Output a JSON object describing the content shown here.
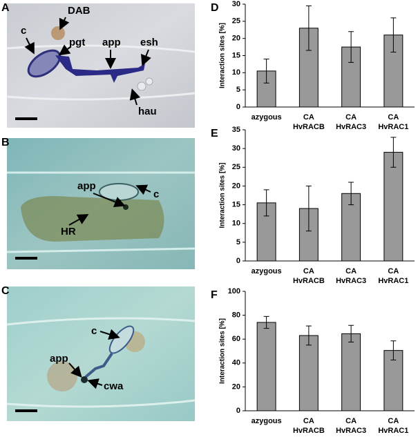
{
  "micrographs": [
    {
      "panel": "A",
      "labels": [
        "DAB",
        "c",
        "pgt",
        "app",
        "esh",
        "hau"
      ]
    },
    {
      "panel": "B",
      "labels": [
        "app",
        "c",
        "HR"
      ]
    },
    {
      "panel": "C",
      "labels": [
        "c",
        "app",
        "cwa"
      ]
    }
  ],
  "chart_data": [
    {
      "type": "bar",
      "panel": "D",
      "y_label": "Interaction sites [%]",
      "categories": [
        [
          "azygous"
        ],
        [
          "CA",
          "HvRACB"
        ],
        [
          "CA",
          "HvRAC3"
        ],
        [
          "CA",
          "HvRAC1"
        ]
      ],
      "values": [
        10.5,
        23,
        17.5,
        21
      ],
      "errors": [
        3.5,
        6.5,
        4.5,
        5
      ],
      "color": "#999999",
      "ylim": [
        0,
        30
      ],
      "yticks": [
        0,
        5,
        10,
        15,
        20,
        25,
        30
      ]
    },
    {
      "type": "bar",
      "panel": "E",
      "y_label": "Interaction sites [%]",
      "categories": [
        [
          "azygous"
        ],
        [
          "CA",
          "HvRACB"
        ],
        [
          "CA",
          "HvRAC3"
        ],
        [
          "CA",
          "HvRAC1"
        ]
      ],
      "values": [
        15.5,
        14,
        18,
        29
      ],
      "errors": [
        3.5,
        6,
        3,
        4
      ],
      "color": "#999999",
      "ylim": [
        0,
        35
      ],
      "yticks": [
        0,
        5,
        10,
        15,
        20,
        25,
        30,
        35
      ]
    },
    {
      "type": "bar",
      "panel": "F",
      "y_label": "Interaction sites [%]",
      "categories": [
        [
          "azygous"
        ],
        [
          "CA",
          "HvRACB"
        ],
        [
          "CA",
          "HvRAC3"
        ],
        [
          "CA",
          "HvRAC1"
        ]
      ],
      "values": [
        74,
        63,
        64.5,
        50.5
      ],
      "errors": [
        5,
        8,
        7,
        8
      ],
      "color": "#999999",
      "ylim": [
        0,
        100
      ],
      "yticks": [
        0,
        20,
        40,
        60,
        80,
        100
      ]
    }
  ]
}
